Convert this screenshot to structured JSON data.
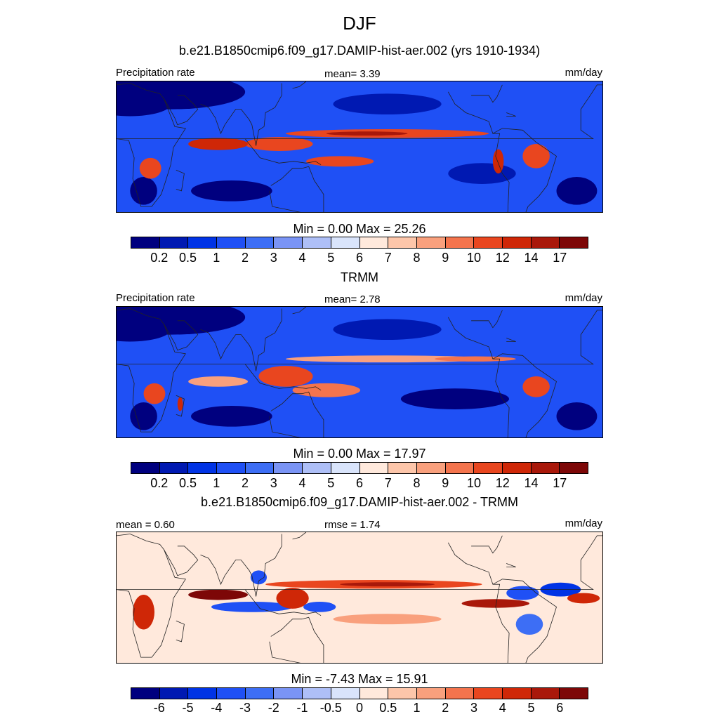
{
  "page_title": "DJF",
  "colors": {
    "precip_palette": [
      "#00007f",
      "#0019b2",
      "#0033e5",
      "#1f50f5",
      "#3d6ef5",
      "#7a94f5",
      "#aebff7",
      "#d9e4fb",
      "#ffe9dc",
      "#fdc6aa",
      "#f9a07d",
      "#f4744d",
      "#e9461f",
      "#cf2707",
      "#a9180a",
      "#7d0707"
    ],
    "diff_palette": [
      "#00007f",
      "#0019b2",
      "#0033e5",
      "#1f50f5",
      "#3d6ef5",
      "#7a94f5",
      "#aebff7",
      "#d9e4fb",
      "#ffe9dc",
      "#fdc6aa",
      "#f9a07d",
      "#f4744d",
      "#e9461f",
      "#cf2707",
      "#a9180a",
      "#7d0707"
    ],
    "coast": "#222222"
  },
  "chart_data": [
    {
      "type": "heatmap",
      "title": "b.e21.B1850cmip6.f09_g17.DAMIP-hist-aer.002 (yrs 1910-1934)",
      "left_label": "Precipitation rate",
      "center_label": "mean=   3.39",
      "mean": 3.39,
      "units": "mm/day",
      "min_max_label": "Min =   0.00 Max =  25.26",
      "min": 0.0,
      "max": 25.26,
      "colorbar_levels": [
        "0.2",
        "0.5",
        "1",
        "2",
        "3",
        "4",
        "5",
        "6",
        "7",
        "8",
        "9",
        "10",
        "12",
        "14",
        "17"
      ],
      "features": {
        "bg_class": 3,
        "blobs": [
          {
            "lon": 40,
            "lat": 32,
            "rx": 55,
            "ry": 10,
            "c": 0
          },
          {
            "lon": 10,
            "lat": 25,
            "rx": 30,
            "ry": 7,
            "c": 0
          },
          {
            "lon": 200,
            "lat": 25,
            "rx": 40,
            "ry": 6,
            "c": 1
          },
          {
            "lon": 85,
            "lat": -25,
            "rx": 30,
            "ry": 6,
            "c": 0
          },
          {
            "lon": 20,
            "lat": -25,
            "rx": 10,
            "ry": 8,
            "c": 0
          },
          {
            "lon": 340,
            "lat": -25,
            "rx": 15,
            "ry": 8,
            "c": 0
          },
          {
            "lon": 270,
            "lat": -15,
            "rx": 25,
            "ry": 6,
            "c": 1
          },
          {
            "lon": 200,
            "lat": 8,
            "rx": 75,
            "ry": 2.5,
            "c": 12
          },
          {
            "lon": 185,
            "lat": 8,
            "rx": 30,
            "ry": 1.2,
            "c": 14
          },
          {
            "lon": 120,
            "lat": 2,
            "rx": 25,
            "ry": 4,
            "c": 12
          },
          {
            "lon": 75,
            "lat": 2,
            "rx": 22,
            "ry": 3.5,
            "c": 13
          },
          {
            "lon": 165,
            "lat": -8,
            "rx": 25,
            "ry": 3,
            "c": 12
          },
          {
            "lon": 310,
            "lat": -5,
            "rx": 10,
            "ry": 7,
            "c": 12
          },
          {
            "lon": 25,
            "lat": -12,
            "rx": 8,
            "ry": 6,
            "c": 12
          },
          {
            "lon": 282,
            "lat": -8,
            "rx": 4,
            "ry": 7,
            "c": 13
          }
        ]
      }
    },
    {
      "type": "heatmap",
      "title": "TRMM",
      "left_label": "Precipitation rate",
      "center_label": "mean=   2.78",
      "mean": 2.78,
      "units": "mm/day",
      "min_max_label": "Min =   0.00 Max =  17.97",
      "min": 0.0,
      "max": 17.97,
      "colorbar_levels": [
        "0.2",
        "0.5",
        "1",
        "2",
        "3",
        "4",
        "5",
        "6",
        "7",
        "8",
        "9",
        "10",
        "12",
        "14",
        "17"
      ],
      "features": {
        "bg_class": 3,
        "blobs": [
          {
            "lon": 40,
            "lat": 32,
            "rx": 55,
            "ry": 10,
            "c": 0
          },
          {
            "lon": 10,
            "lat": 25,
            "rx": 30,
            "ry": 7,
            "c": 0
          },
          {
            "lon": 200,
            "lat": 25,
            "rx": 40,
            "ry": 6,
            "c": 1
          },
          {
            "lon": 85,
            "lat": -25,
            "rx": 30,
            "ry": 6,
            "c": 0
          },
          {
            "lon": 20,
            "lat": -25,
            "rx": 10,
            "ry": 8,
            "c": 0
          },
          {
            "lon": 250,
            "lat": -15,
            "rx": 40,
            "ry": 6,
            "c": 0
          },
          {
            "lon": 340,
            "lat": -25,
            "rx": 15,
            "ry": 8,
            "c": 0
          },
          {
            "lon": 200,
            "lat": 8,
            "rx": 75,
            "ry": 2,
            "c": 10
          },
          {
            "lon": 265,
            "lat": 8,
            "rx": 30,
            "ry": 1.5,
            "c": 11
          },
          {
            "lon": 125,
            "lat": -2,
            "rx": 20,
            "ry": 6,
            "c": 12
          },
          {
            "lon": 155,
            "lat": -10,
            "rx": 25,
            "ry": 4,
            "c": 11
          },
          {
            "lon": 75,
            "lat": -5,
            "rx": 22,
            "ry": 3,
            "c": 10
          },
          {
            "lon": 310,
            "lat": -8,
            "rx": 10,
            "ry": 6,
            "c": 12
          },
          {
            "lon": 28,
            "lat": -12,
            "rx": 8,
            "ry": 6,
            "c": 12
          },
          {
            "lon": 47,
            "lat": -18,
            "rx": 2,
            "ry": 4,
            "c": 13
          }
        ]
      }
    },
    {
      "type": "heatmap",
      "title": "b.e21.B1850cmip6.f09_g17.DAMIP-hist-aer.002 - TRMM",
      "left_label": "mean =   0.60",
      "center_label": "rmse =   1.74",
      "mean": 0.6,
      "rmse": 1.74,
      "units": "mm/day",
      "min_max_label": "Min =  -7.43 Max =  15.91",
      "min": -7.43,
      "max": 15.91,
      "colorbar_levels": [
        "-6",
        "-5",
        "-4",
        "-3",
        "-2",
        "-1",
        "-0.5",
        "0",
        "0.5",
        "1",
        "2",
        "3",
        "4",
        "5",
        "6"
      ],
      "features": {
        "bg_class": 8,
        "blobs": [
          {
            "lon": 190,
            "lat": 8,
            "rx": 80,
            "ry": 2.5,
            "c": 12
          },
          {
            "lon": 200,
            "lat": 8,
            "rx": 35,
            "ry": 1.2,
            "c": 14
          },
          {
            "lon": 75,
            "lat": 2,
            "rx": 22,
            "ry": 3,
            "c": 15
          },
          {
            "lon": 100,
            "lat": -5,
            "rx": 30,
            "ry": 3,
            "c": 3
          },
          {
            "lon": 130,
            "lat": 0,
            "rx": 12,
            "ry": 6,
            "c": 13
          },
          {
            "lon": 105,
            "lat": 12,
            "rx": 6,
            "ry": 4,
            "c": 3
          },
          {
            "lon": 150,
            "lat": -5,
            "rx": 12,
            "ry": 3,
            "c": 3
          },
          {
            "lon": 200,
            "lat": -12,
            "rx": 40,
            "ry": 3,
            "c": 10
          },
          {
            "lon": 280,
            "lat": -3,
            "rx": 25,
            "ry": 2.5,
            "c": 14
          },
          {
            "lon": 300,
            "lat": 3,
            "rx": 12,
            "ry": 4,
            "c": 3
          },
          {
            "lon": 305,
            "lat": -15,
            "rx": 10,
            "ry": 6,
            "c": 4
          },
          {
            "lon": 20,
            "lat": -8,
            "rx": 8,
            "ry": 10,
            "c": 13
          },
          {
            "lon": 328,
            "lat": 5,
            "rx": 15,
            "ry": 4,
            "c": 2
          },
          {
            "lon": 345,
            "lat": 0,
            "rx": 12,
            "ry": 3,
            "c": 13
          }
        ]
      }
    }
  ]
}
